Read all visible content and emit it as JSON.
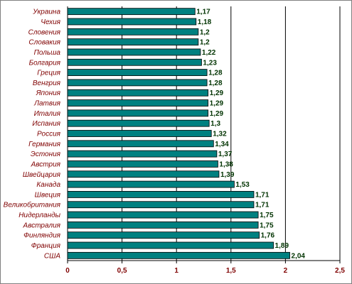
{
  "chart_data": {
    "type": "bar",
    "orientation": "horizontal",
    "categories": [
      "Украина",
      "Чехия",
      "Словения",
      "Словакия",
      "Польша",
      "Болгария",
      "Греция",
      "Венгрия",
      "Япония",
      "Латвия",
      "Италия",
      "Испания",
      "Россия",
      "Германия",
      "Эстония",
      "Австрия",
      "Швейцария",
      "Канада",
      "Швеция",
      "Великобритания",
      "Нидерланды",
      "Австралия",
      "Финляндия",
      "Франция",
      "США"
    ],
    "values": [
      1.17,
      1.18,
      1.2,
      1.2,
      1.22,
      1.23,
      1.28,
      1.28,
      1.29,
      1.29,
      1.29,
      1.3,
      1.32,
      1.34,
      1.37,
      1.38,
      1.39,
      1.53,
      1.71,
      1.71,
      1.75,
      1.75,
      1.76,
      1.89,
      2.04
    ],
    "value_labels": [
      "1,17",
      "1,18",
      "1,2",
      "1,2",
      "1,22",
      "1,23",
      "1,28",
      "1,28",
      "1,29",
      "1,29",
      "1,29",
      "1,3",
      "1,32",
      "1,34",
      "1,37",
      "1,38",
      "1,39",
      "1,53",
      "1,71",
      "1,71",
      "1,75",
      "1,75",
      "1,76",
      "1,89",
      "2,04"
    ],
    "x_ticks": [
      0,
      0.5,
      1,
      1.5,
      2,
      2.5
    ],
    "x_tick_labels": [
      "0",
      "0,5",
      "1",
      "1,5",
      "2",
      "2,5"
    ],
    "xlim": [
      0,
      2.5
    ],
    "title": "",
    "xlabel": "",
    "ylabel": "",
    "grid": "vertical",
    "legend": "none",
    "colors": {
      "bar": "#008080",
      "bar_stroke": "#000000",
      "category_text": "#7f0000",
      "value_text": "#003300",
      "tick_text": "#7f0000",
      "grid": "#000000"
    }
  }
}
